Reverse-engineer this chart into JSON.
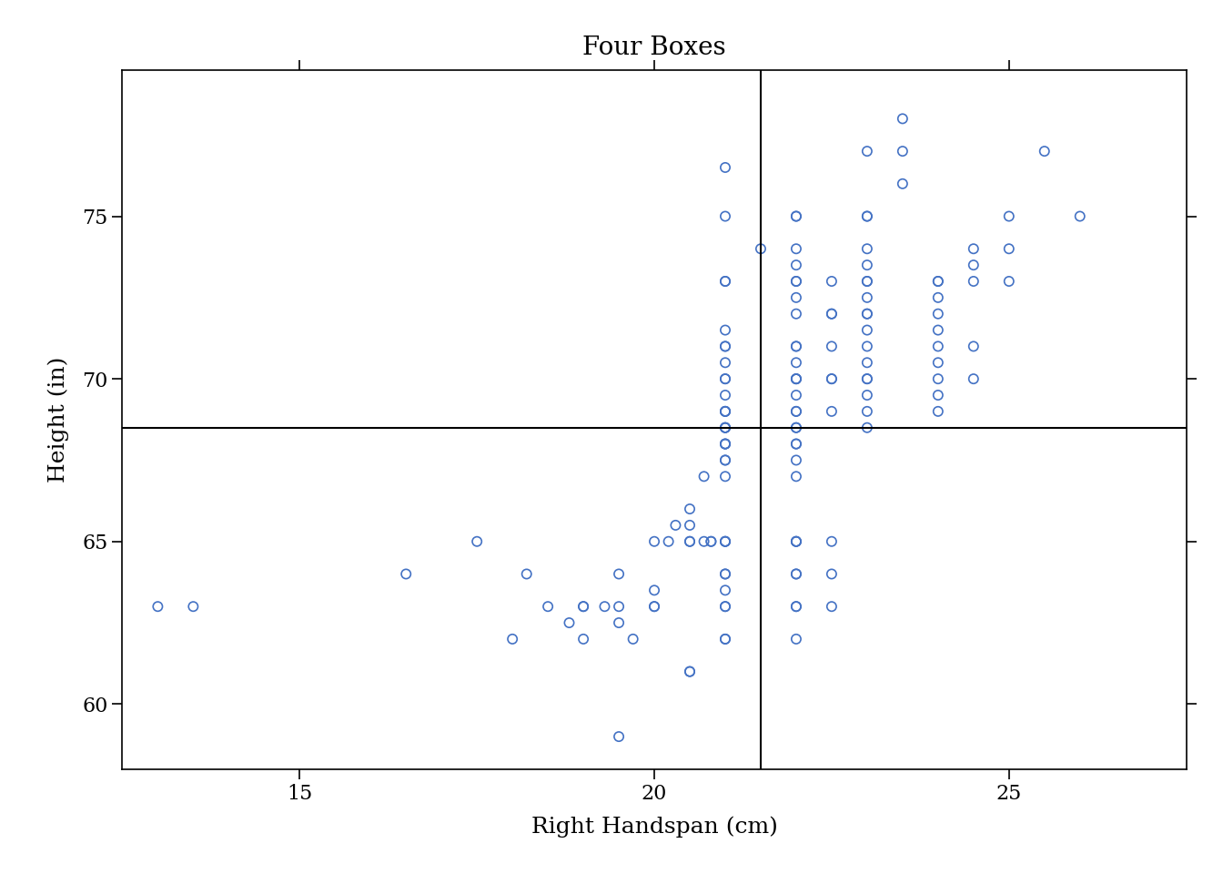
{
  "title": "Four Boxes",
  "xlabel": "Right Handspan (cm)",
  "ylabel": "Height (in)",
  "xlim": [
    12.5,
    27.5
  ],
  "ylim": [
    58.0,
    79.5
  ],
  "xticks": [
    15,
    20,
    25
  ],
  "yticks": [
    60,
    65,
    70,
    75
  ],
  "mean_x": 21.5,
  "mean_y": 68.5,
  "point_color": "#4472C4",
  "line_color": "black",
  "background_color": "white",
  "points": [
    [
      13.0,
      63.0
    ],
    [
      13.5,
      63.0
    ],
    [
      16.5,
      64.0
    ],
    [
      17.5,
      65.0
    ],
    [
      18.0,
      62.0
    ],
    [
      18.2,
      64.0
    ],
    [
      18.5,
      63.0
    ],
    [
      18.8,
      62.5
    ],
    [
      19.0,
      63.0
    ],
    [
      19.0,
      63.0
    ],
    [
      19.0,
      62.0
    ],
    [
      19.3,
      63.0
    ],
    [
      19.5,
      64.0
    ],
    [
      19.5,
      63.0
    ],
    [
      19.5,
      62.5
    ],
    [
      19.7,
      62.0
    ],
    [
      20.0,
      65.0
    ],
    [
      20.0,
      63.5
    ],
    [
      20.0,
      63.0
    ],
    [
      20.0,
      63.0
    ],
    [
      20.2,
      65.0
    ],
    [
      20.3,
      65.5
    ],
    [
      20.5,
      66.0
    ],
    [
      20.5,
      65.5
    ],
    [
      20.5,
      65.0
    ],
    [
      20.5,
      65.0
    ],
    [
      20.7,
      67.0
    ],
    [
      20.5,
      61.0
    ],
    [
      20.5,
      61.0
    ],
    [
      20.7,
      65.0
    ],
    [
      20.8,
      65.0
    ],
    [
      20.8,
      65.0
    ],
    [
      19.5,
      59.0
    ],
    [
      21.0,
      76.5
    ],
    [
      21.0,
      75.0
    ],
    [
      21.0,
      73.0
    ],
    [
      21.0,
      73.0
    ],
    [
      21.0,
      71.5
    ],
    [
      21.0,
      71.0
    ],
    [
      21.0,
      71.0
    ],
    [
      21.0,
      70.5
    ],
    [
      21.0,
      70.0
    ],
    [
      21.0,
      70.0
    ],
    [
      21.0,
      69.5
    ],
    [
      21.0,
      69.0
    ],
    [
      21.0,
      69.0
    ],
    [
      21.0,
      69.0
    ],
    [
      21.0,
      68.5
    ],
    [
      21.0,
      68.5
    ],
    [
      21.0,
      68.5
    ],
    [
      21.0,
      68.0
    ],
    [
      21.0,
      68.0
    ],
    [
      21.0,
      68.0
    ],
    [
      21.0,
      67.5
    ],
    [
      21.0,
      67.5
    ],
    [
      21.0,
      67.0
    ],
    [
      21.0,
      65.0
    ],
    [
      21.0,
      65.0
    ],
    [
      21.0,
      65.0
    ],
    [
      21.0,
      64.0
    ],
    [
      21.0,
      64.0
    ],
    [
      21.0,
      63.5
    ],
    [
      21.0,
      63.0
    ],
    [
      21.0,
      63.0
    ],
    [
      21.0,
      62.0
    ],
    [
      21.0,
      62.0
    ],
    [
      21.5,
      74.0
    ],
    [
      22.0,
      75.0
    ],
    [
      22.0,
      75.0
    ],
    [
      22.0,
      74.0
    ],
    [
      22.0,
      73.5
    ],
    [
      22.0,
      73.0
    ],
    [
      22.0,
      73.0
    ],
    [
      22.0,
      72.5
    ],
    [
      22.0,
      72.0
    ],
    [
      22.0,
      71.0
    ],
    [
      22.0,
      71.0
    ],
    [
      22.0,
      70.5
    ],
    [
      22.0,
      70.0
    ],
    [
      22.0,
      70.0
    ],
    [
      22.0,
      70.0
    ],
    [
      22.0,
      69.5
    ],
    [
      22.0,
      69.0
    ],
    [
      22.0,
      69.0
    ],
    [
      22.0,
      68.5
    ],
    [
      22.0,
      68.5
    ],
    [
      22.0,
      68.0
    ],
    [
      22.0,
      68.0
    ],
    [
      22.0,
      67.5
    ],
    [
      22.0,
      67.0
    ],
    [
      22.0,
      65.0
    ],
    [
      22.0,
      65.0
    ],
    [
      22.0,
      64.0
    ],
    [
      22.0,
      64.0
    ],
    [
      22.0,
      63.0
    ],
    [
      22.0,
      63.0
    ],
    [
      22.5,
      73.0
    ],
    [
      22.5,
      72.0
    ],
    [
      22.5,
      72.0
    ],
    [
      22.5,
      71.0
    ],
    [
      22.5,
      70.0
    ],
    [
      22.5,
      70.0
    ],
    [
      22.5,
      69.0
    ],
    [
      23.0,
      77.0
    ],
    [
      23.0,
      75.0
    ],
    [
      23.0,
      75.0
    ],
    [
      23.0,
      74.0
    ],
    [
      23.0,
      73.5
    ],
    [
      23.0,
      73.0
    ],
    [
      23.0,
      73.0
    ],
    [
      23.0,
      72.5
    ],
    [
      23.0,
      72.0
    ],
    [
      23.0,
      72.0
    ],
    [
      23.0,
      71.5
    ],
    [
      23.0,
      71.0
    ],
    [
      23.0,
      70.5
    ],
    [
      23.0,
      70.0
    ],
    [
      23.0,
      70.0
    ],
    [
      23.0,
      69.5
    ],
    [
      23.0,
      69.0
    ],
    [
      23.0,
      68.5
    ],
    [
      23.5,
      78.0
    ],
    [
      23.5,
      77.0
    ],
    [
      23.5,
      76.0
    ],
    [
      24.0,
      73.0
    ],
    [
      24.0,
      73.0
    ],
    [
      24.0,
      72.5
    ],
    [
      24.0,
      72.0
    ],
    [
      24.0,
      71.5
    ],
    [
      24.0,
      71.0
    ],
    [
      24.0,
      70.5
    ],
    [
      24.0,
      70.0
    ],
    [
      24.0,
      69.5
    ],
    [
      24.0,
      69.0
    ],
    [
      24.5,
      74.0
    ],
    [
      24.5,
      73.5
    ],
    [
      24.5,
      73.0
    ],
    [
      24.5,
      71.0
    ],
    [
      24.5,
      70.0
    ],
    [
      25.0,
      75.0
    ],
    [
      25.0,
      74.0
    ],
    [
      25.0,
      73.0
    ],
    [
      25.5,
      77.0
    ],
    [
      26.0,
      75.0
    ],
    [
      22.0,
      62.0
    ],
    [
      22.0,
      65.0
    ],
    [
      22.5,
      65.0
    ],
    [
      22.5,
      64.0
    ],
    [
      22.5,
      63.0
    ]
  ]
}
